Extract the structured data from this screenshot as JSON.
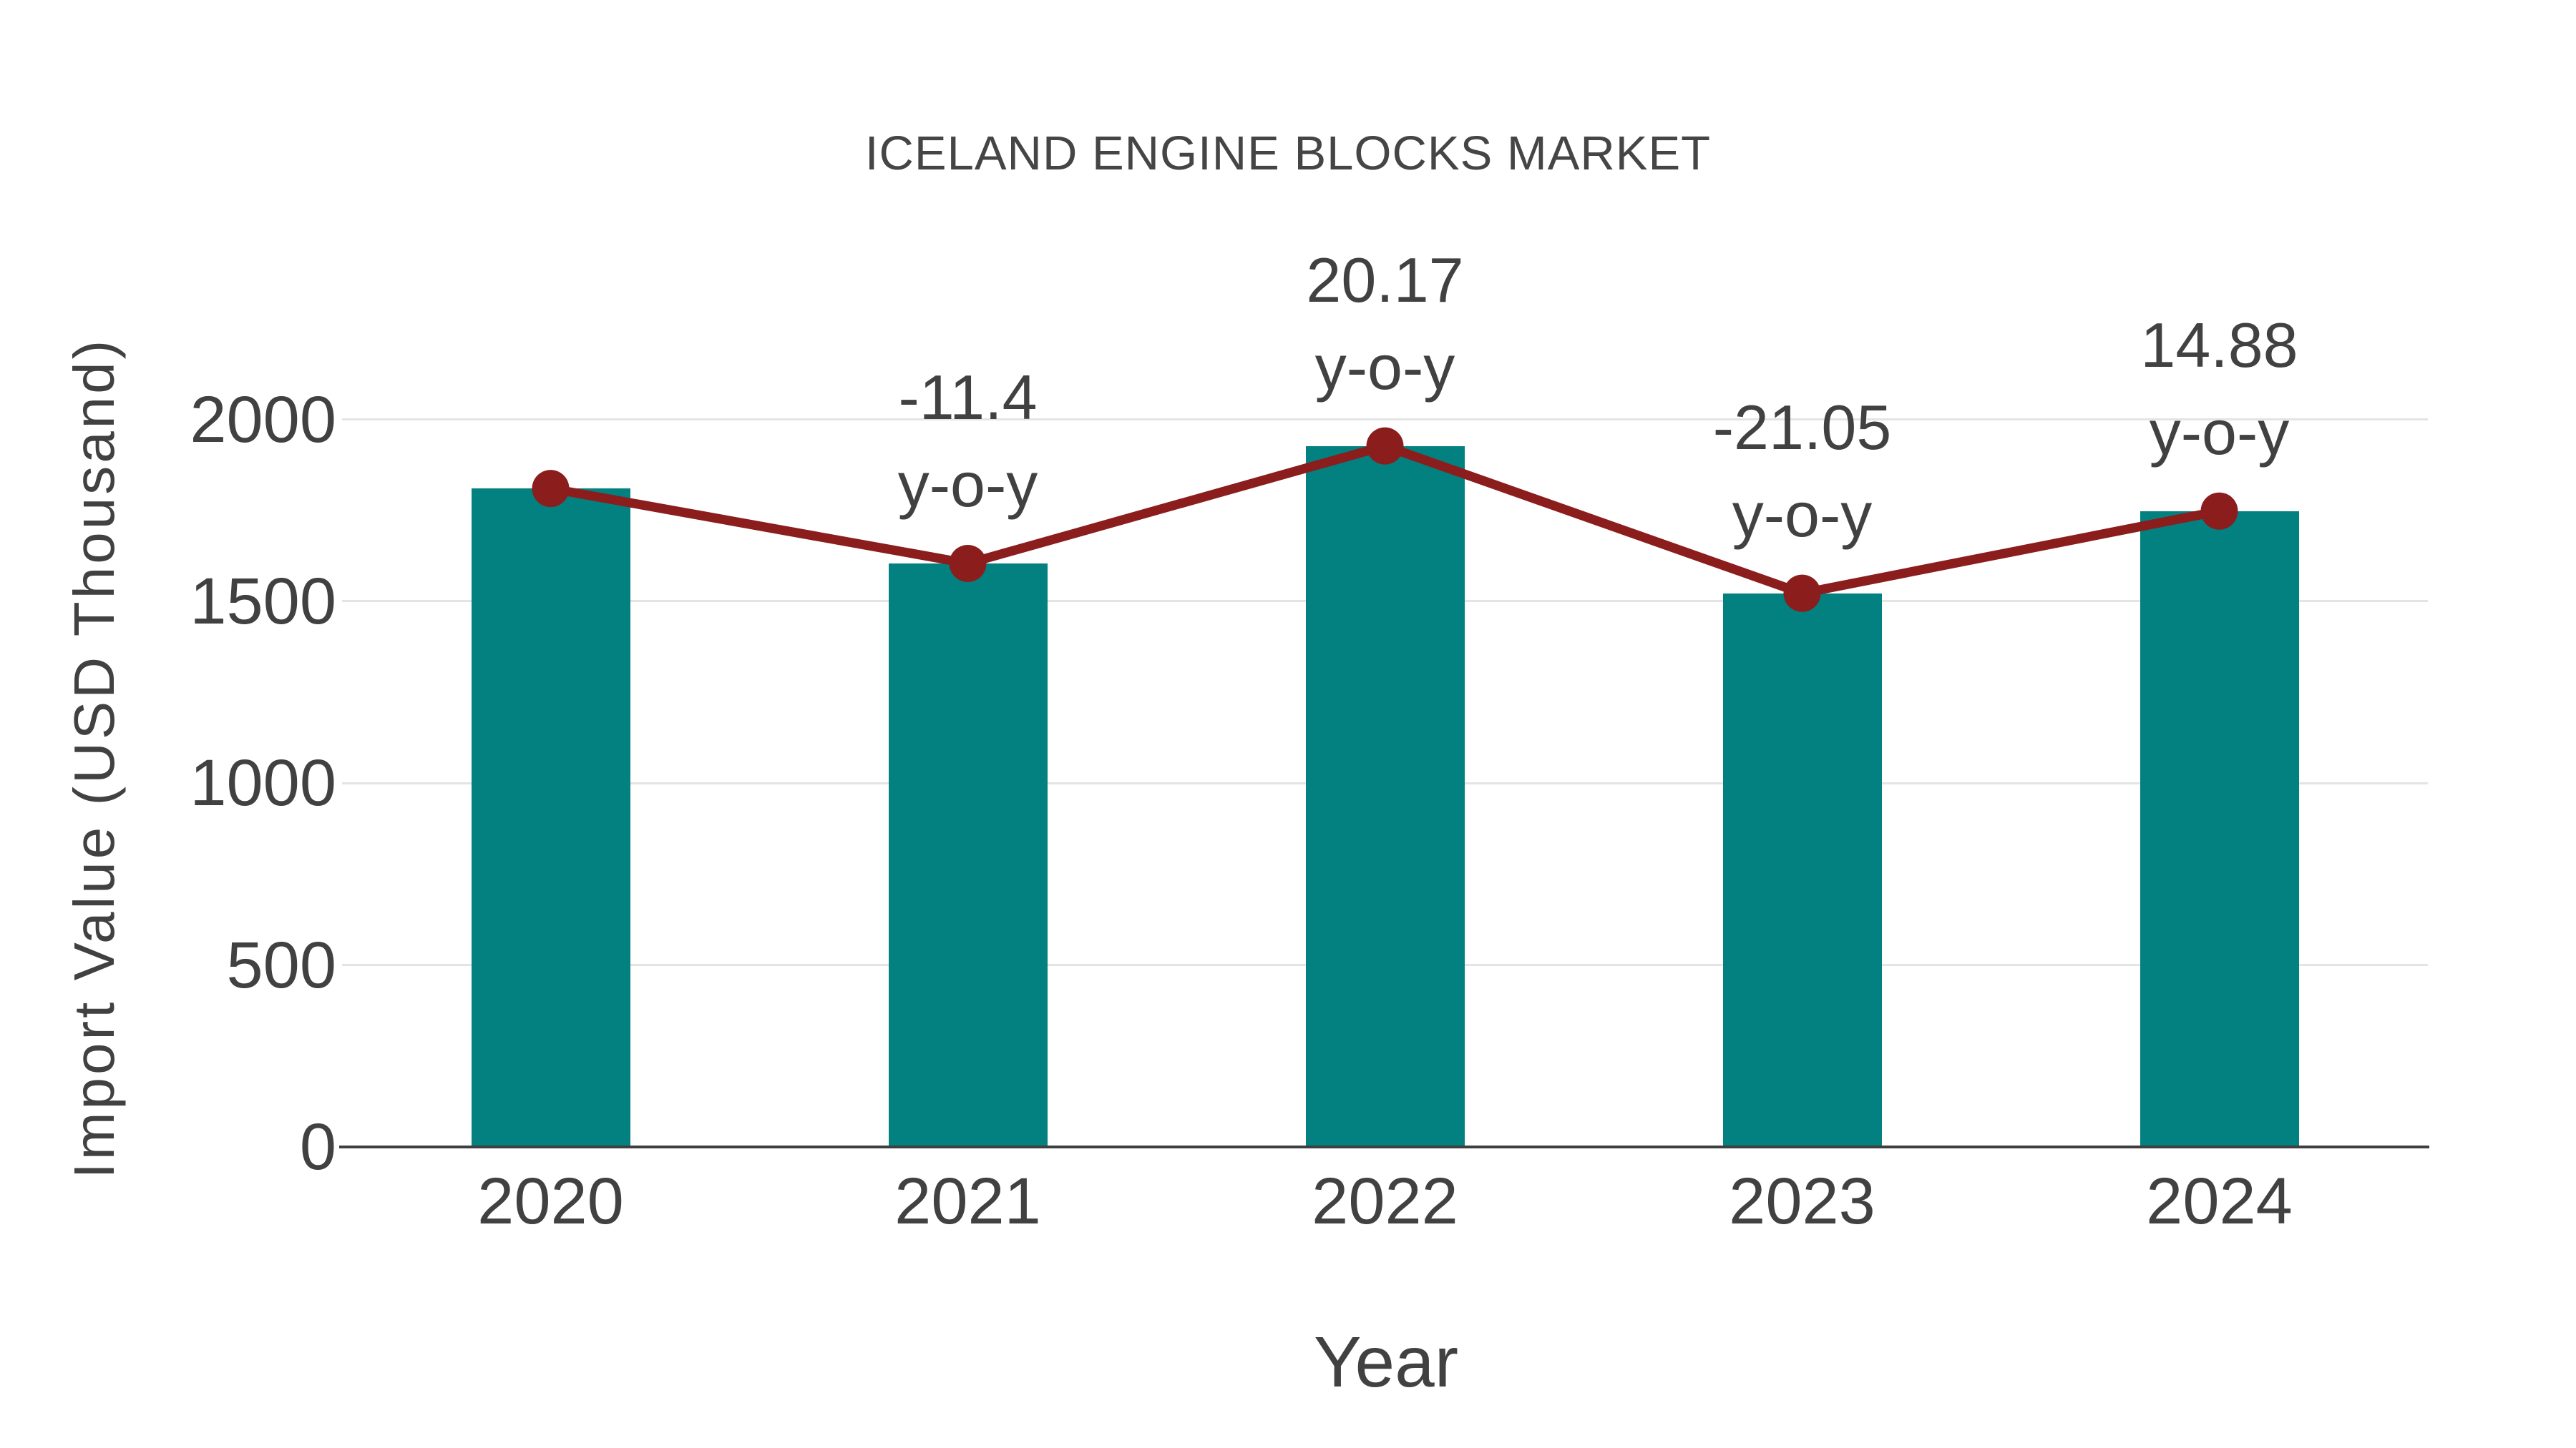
{
  "title": "ICELAND ENGINE BLOCKS MARKET",
  "xlabel": "Year",
  "ylabel": "Import Value (USD Thousand)",
  "chart_data": {
    "type": "bar",
    "subtype": "bar-with-line-overlay",
    "title": "ICELAND ENGINE BLOCKS MARKET",
    "xlabel": "Year",
    "ylabel": "Import Value (USD Thousand)",
    "categories": [
      "2020",
      "2021",
      "2022",
      "2023",
      "2024"
    ],
    "series": [
      {
        "name": "Import Value (USD Thousand)",
        "type": "bar",
        "values": [
          1810,
          1604,
          1927,
          1522,
          1748
        ]
      },
      {
        "name": "Year-over-year change",
        "type": "line",
        "values": [
          1810,
          1604,
          1927,
          1522,
          1748
        ],
        "note": "line with dot markers drawn on bar tops; labels show y-o-y % change",
        "point_labels": [
          "",
          "-11.4",
          "20.17",
          "-21.05",
          "14.88"
        ],
        "label_suffix": "y-o-y"
      }
    ],
    "ylim": [
      0,
      2000
    ],
    "yticks": [
      0,
      500,
      1000,
      1500,
      2000
    ],
    "grid": true,
    "legend": "none",
    "colors": {
      "bar": "#028180",
      "line": "#8b1d1d",
      "marker": "#8b1d1d",
      "text": "#414141",
      "grid": "#e4e4e4",
      "axis": "#3f3f3f",
      "background": "#ffffff"
    }
  }
}
